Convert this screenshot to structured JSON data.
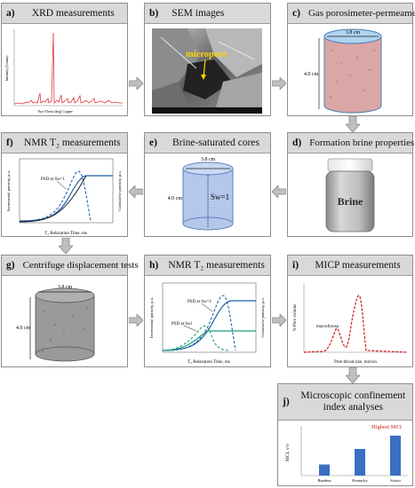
{
  "colors": {
    "header_bg": "#d9d9d9",
    "arrow_fill": "#bfbfbf",
    "arrow_stroke": "#8a8a8a"
  },
  "panels": {
    "a": {
      "label": "a)",
      "title": "XRD measurements",
      "axis_x": "Two-Theta (deg) Copper",
      "axis_y": "Intensity (Counts)"
    },
    "b": {
      "label": "b)",
      "title": "SEM images",
      "annotation": "micropore"
    },
    "c": {
      "label": "c)",
      "title": "Gas porosimeter-permeameter",
      "diameter": "3.8 cm",
      "height": "4.0 cm"
    },
    "d": {
      "label": "d)",
      "title": "Formation brine properties",
      "bottle_label": "Brine"
    },
    "e": {
      "label": "e)",
      "title": "Brine-saturated cores",
      "diameter": "3.8 cm",
      "height": "4.0 cm",
      "saturation": "Sw=1"
    },
    "f": {
      "label": "f)",
      "title": "NMR T₂ measurements",
      "annotation": "PSD at Sw=1",
      "xlabel": "T₂ Relaxation Time, ms",
      "ylabel_left": "Incremental porosity, p.u.",
      "ylabel_right": "Cumulative porosity, p.u."
    },
    "g": {
      "label": "g)",
      "title": "Centrifuge displacement tests",
      "diameter": "3.8 cm",
      "height": "4.0 cm"
    },
    "h": {
      "label": "h)",
      "title": "NMR T₂ measurements",
      "annotation_1": "PSD at Sw=1",
      "annotation_2": "PSD at Swi",
      "xlabel": "T₂ Relaxation Time, ms",
      "ylabel_left": "Incremental porosity, p.u.",
      "ylabel_right": "Cumulative porosity, p.u."
    },
    "i": {
      "label": "i)",
      "title": "MICP measurements",
      "annotation": "macroforosa",
      "xlabel": "Pore throat size, micron",
      "ylabel": "% Pore volume"
    },
    "j": {
      "label": "j)",
      "title": "Microscopic confinement index analyses",
      "highlight": "Highest MCI",
      "ylabel": "MCI, v/v",
      "categories": [
        "Bandera",
        "Kentucky",
        "Scioto"
      ],
      "values": [
        0.2,
        0.48,
        0.72
      ]
    }
  }
}
